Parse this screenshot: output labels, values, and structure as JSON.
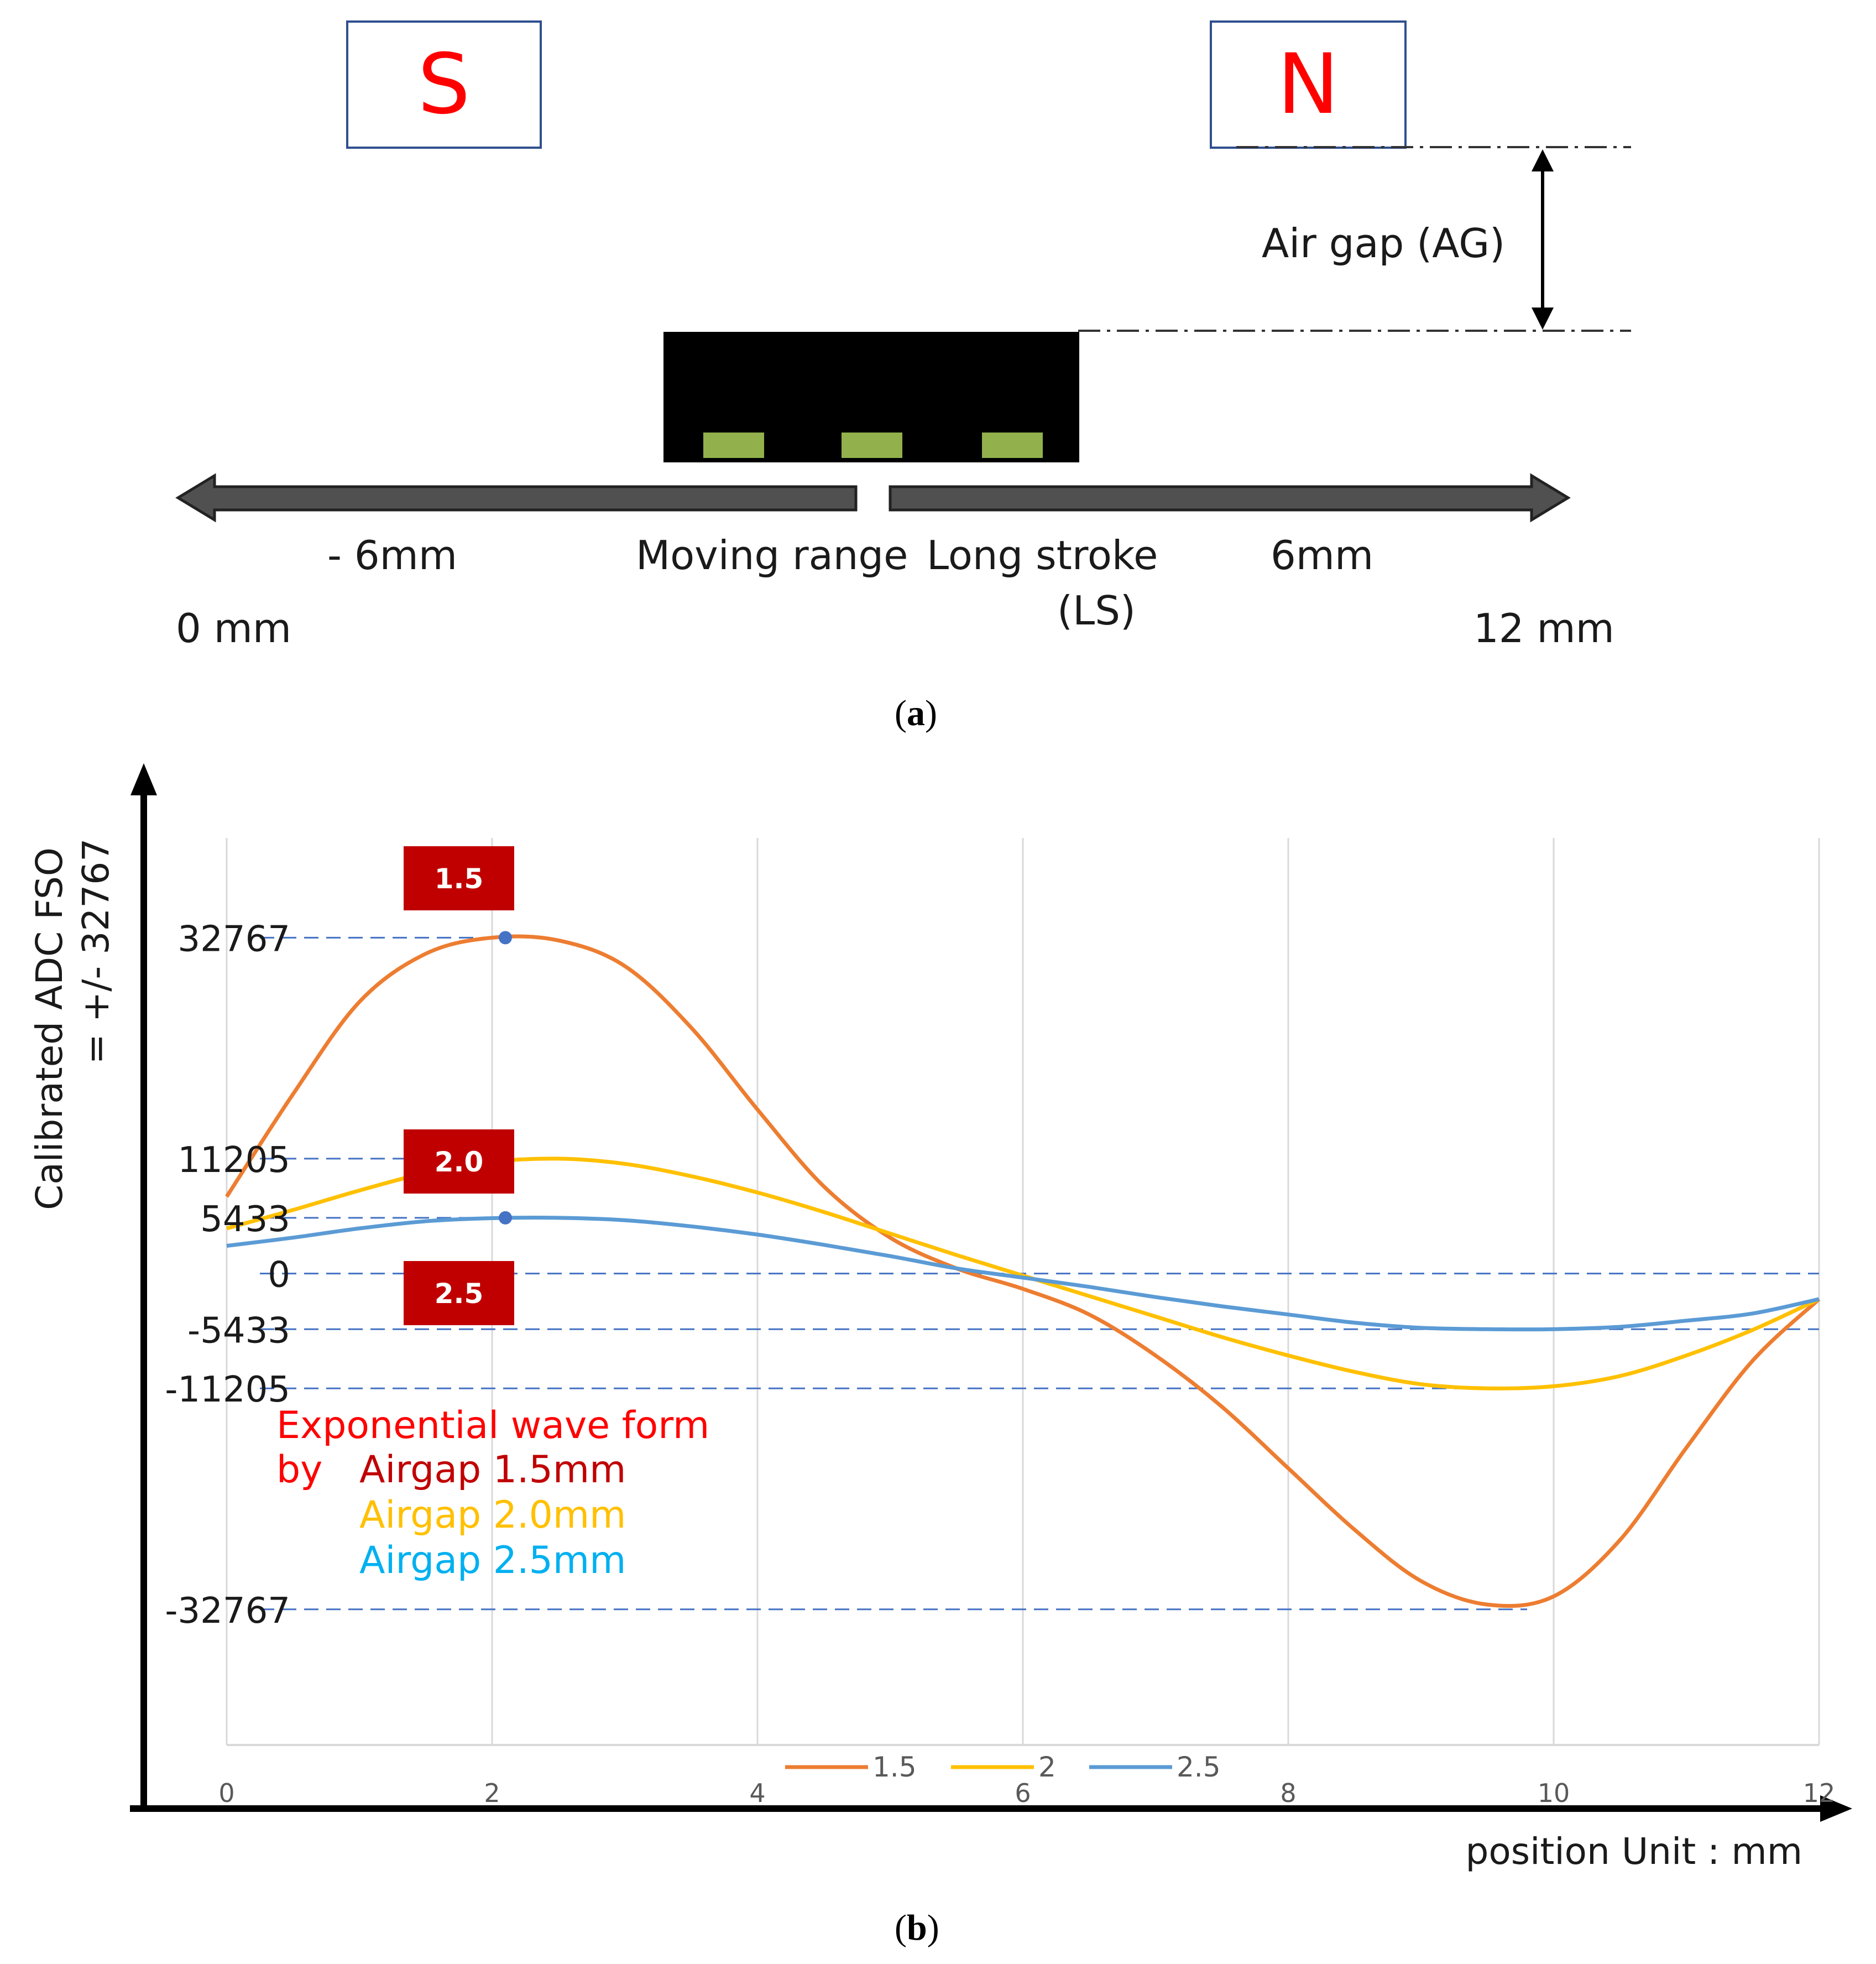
{
  "diagram": {
    "pole_left": "S",
    "pole_right": "N",
    "air_gap_label": "Air gap (AG)",
    "left_range_label": "- 6mm",
    "moving_range_label": "Moving range",
    "long_stroke_label": "Long stroke",
    "ls_label": "(LS)",
    "right_range_label": "6mm",
    "left_end_label": "0 mm",
    "right_end_label": "12 mm",
    "panel_label_open": "(",
    "panel_letter": "a",
    "panel_label_close": ")"
  },
  "chart_panel": {
    "panel_label_open": "(",
    "panel_letter": "b",
    "panel_label_close": ")",
    "ylabel_line1": "Calibrated ADC FSO",
    "ylabel_line2": "= +/- 32767",
    "xlabel": "position   Unit : mm",
    "annotation_title": "Exponential wave form",
    "annotation_by": "by",
    "annotation_lines": [
      "Airgap 1.5mm",
      "Airgap 2.0mm",
      "Airgap 2.5mm"
    ],
    "badges": [
      "1.5",
      "2.0",
      "2.5"
    ],
    "colors": {
      "series_1_5": "#ED7D31",
      "series_2_0": "#FFC000",
      "series_2_5": "#5B9BD5",
      "badge": "#C00000",
      "annotation_title": "#FF0000",
      "annotation_1_5": "#C00000",
      "annotation_2_0": "#FFC000",
      "annotation_2_5": "#00B0F0",
      "ref_line": "#4472C4"
    }
  },
  "chart_data": {
    "type": "line",
    "title": "",
    "xlabel": "position   Unit : mm",
    "ylabel": "Calibrated ADC FSO = +/- 32767",
    "xlim": [
      0,
      12
    ],
    "x_ticks": [
      0,
      2,
      4,
      6,
      8,
      10,
      12
    ],
    "ylim": [
      -46000,
      42500
    ],
    "y_ref_values": [
      32767,
      11205,
      5433,
      0,
      -5433,
      -11205,
      -32767
    ],
    "y_ref_labels": [
      "32767",
      "11205",
      "5433",
      "0",
      "-5433",
      "-11205",
      "-32767"
    ],
    "grid": "vertical",
    "legend": "bottom",
    "x": [
      0,
      0.5,
      1,
      1.5,
      2,
      2.5,
      3,
      3.5,
      4,
      4.5,
      5,
      5.5,
      6,
      6.5,
      7,
      7.5,
      8,
      8.5,
      9,
      9.5,
      10,
      10.5,
      11,
      11.5,
      12
    ],
    "series": [
      {
        "name": "1.5",
        "values": [
          7500,
          17500,
          26500,
          31200,
          32767,
          32500,
          30000,
          24000,
          16000,
          8500,
          3500,
          500,
          -1500,
          -4000,
          -8000,
          -13000,
          -19000,
          -25000,
          -30000,
          -32300,
          -31500,
          -26000,
          -17000,
          -8500,
          -2500
        ]
      },
      {
        "name": "2",
        "values": [
          4400,
          6200,
          8100,
          9800,
          10900,
          11205,
          10700,
          9500,
          7900,
          6000,
          3900,
          1800,
          -200,
          -2200,
          -4200,
          -6200,
          -8000,
          -9600,
          -10800,
          -11205,
          -11000,
          -10000,
          -8000,
          -5500,
          -2500
        ]
      },
      {
        "name": "2.5",
        "values": [
          2700,
          3500,
          4400,
          5100,
          5400,
          5433,
          5200,
          4600,
          3800,
          2800,
          1700,
          500,
          -400,
          -1300,
          -2300,
          -3200,
          -4000,
          -4800,
          -5300,
          -5433,
          -5433,
          -5200,
          -4600,
          -3900,
          -2500
        ]
      }
    ]
  }
}
